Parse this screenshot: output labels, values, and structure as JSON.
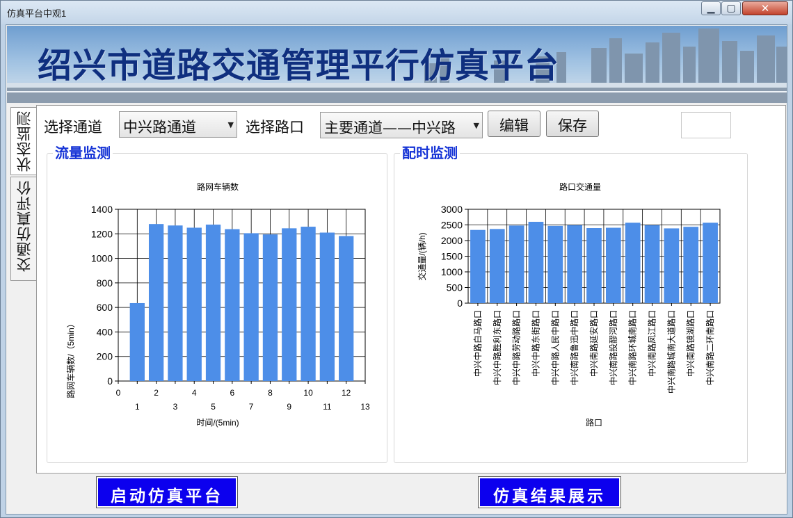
{
  "window": {
    "title": "仿真平台中观1",
    "min_glyph": "▁",
    "max_glyph": "▢",
    "close_glyph": "✕"
  },
  "banner": {
    "title": "绍兴市道路交通管理平行仿真平台"
  },
  "tabs": [
    {
      "label": "状态监测"
    },
    {
      "label": "交通仿真评价"
    }
  ],
  "toolbar": {
    "channel_label": "选择通道",
    "channel_value": "中兴路通道",
    "intersection_label": "选择路口",
    "intersection_value": "主要通道——中兴路",
    "edit_label": "编辑",
    "save_label": "保存"
  },
  "groups": {
    "flow": "流量监测",
    "timing": "配时监测"
  },
  "chart_data": [
    {
      "type": "bar",
      "title": "路网车辆数",
      "xlabel": "时间/(5min)",
      "ylabel": "路网车辆数/（5min）",
      "x": [
        1,
        2,
        3,
        4,
        5,
        6,
        7,
        8,
        9,
        10,
        11,
        12
      ],
      "values": [
        635,
        1280,
        1268,
        1250,
        1275,
        1238,
        1205,
        1195,
        1245,
        1258,
        1210,
        1182
      ],
      "xlim": [
        0,
        13
      ],
      "ylim": [
        0,
        1400
      ],
      "yticks": [
        0,
        200,
        400,
        600,
        800,
        1000,
        1200,
        1400
      ],
      "xticks_upper": [
        "0",
        "2",
        "4",
        "6",
        "8",
        "10",
        "12"
      ],
      "xticks_lower": [
        "1",
        "3",
        "5",
        "7",
        "9",
        "11",
        "13"
      ],
      "color": "#4d8ee8"
    },
    {
      "type": "bar",
      "title": "路口交通量",
      "xlabel": "路口",
      "ylabel": "交通量/(辆/h)",
      "categories": [
        "中兴中路白马路口",
        "中兴中路胜利东路口",
        "中兴中路劳动路路口",
        "中兴中路东街路口",
        "中兴中路人民中路口",
        "中兴南路鲁迅中路口",
        "中兴南路延安路口",
        "中兴南路投醪河路口",
        "中兴南路环城南路口",
        "中兴南路凤江路口",
        "中兴南路城南大道路口",
        "中兴南路镜湖路口",
        "中兴南路二环南路口"
      ],
      "values": [
        2340,
        2370,
        2480,
        2600,
        2470,
        2490,
        2400,
        2410,
        2570,
        2490,
        2390,
        2440,
        2570
      ],
      "ylim": [
        0,
        3000
      ],
      "yticks": [
        0,
        500,
        1000,
        1500,
        2000,
        2500,
        3000
      ],
      "color": "#4d8ee8"
    }
  ],
  "actions": {
    "start": "启动仿真平台",
    "result": "仿真结果展示"
  }
}
